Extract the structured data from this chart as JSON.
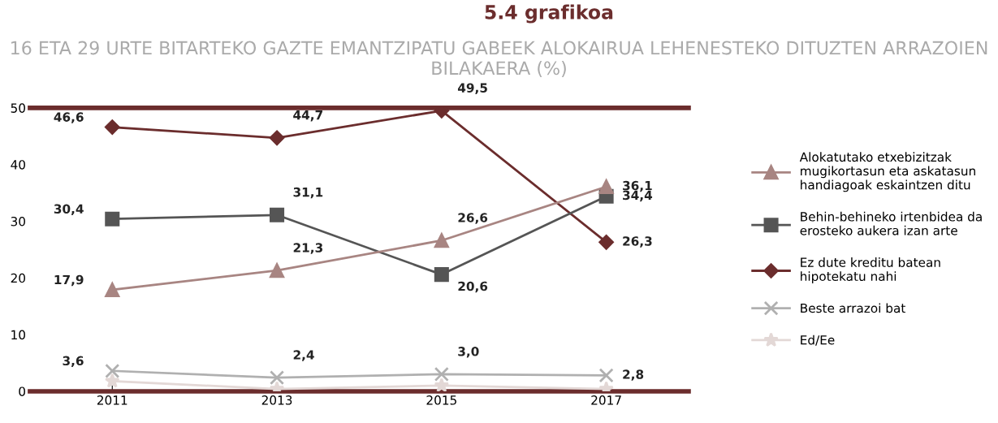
{
  "chart_data": {
    "type": "line",
    "title": "5.4 grafikoa",
    "subtitle": "16 ETA 29 URTE BITARTEKO GAZTE EMANTZIPATU GABEEK ALOKAIRUA LEHENESTEKO DITUZTEN ARRAZOIEN BILAKAERA (%)",
    "categories": [
      "2011",
      "2013",
      "2015",
      "2017"
    ],
    "series": [
      {
        "name": "Alokatutako etxebizitzak mugikortasun eta askatasun handiagoak eskaintzen ditu",
        "color": "#a88582",
        "marker": "triangle",
        "values": [
          17.9,
          21.3,
          26.6,
          36.1
        ],
        "value_labels": [
          "17,9",
          "21,3",
          "26,6",
          "36,1"
        ]
      },
      {
        "name": "Behin-behineko irtenbidea da erosteko aukera izan arte",
        "color": "#555555",
        "marker": "square",
        "values": [
          30.4,
          31.1,
          20.6,
          34.4
        ],
        "value_labels": [
          "30,4",
          "31,1",
          "20,6",
          "34,4"
        ]
      },
      {
        "name": "Ez dute kreditu batean hipotekatu nahi",
        "color": "#6b2d2d",
        "marker": "diamond",
        "values": [
          46.6,
          44.7,
          49.5,
          26.3
        ],
        "value_labels": [
          "46,6",
          "44,7",
          "49,5",
          "26,3"
        ]
      },
      {
        "name": "Beste arrazoi bat",
        "color": "#b0b0b0",
        "marker": "cross",
        "values": [
          3.6,
          2.4,
          3.0,
          2.8
        ],
        "value_labels": [
          "3,6",
          "2,4",
          "3,0",
          "2,8"
        ]
      },
      {
        "name": "Ed/Ee",
        "color": "#e3d8d6",
        "marker": "star",
        "values": [
          1.8,
          0.4,
          1.0,
          0.4
        ]
      }
    ],
    "ylim": [
      0,
      50
    ],
    "yticks": [
      0,
      10,
      20,
      30,
      40,
      50
    ],
    "ref_lines": [
      {
        "axis": "y",
        "value": 50,
        "color": "#6b2d2d"
      }
    ],
    "grid": false,
    "legend": "right"
  }
}
